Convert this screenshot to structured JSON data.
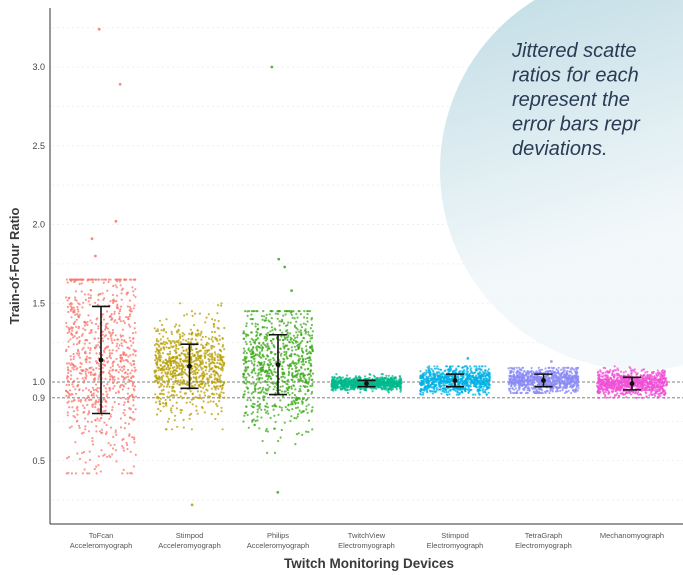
{
  "chart_data": {
    "type": "scatter",
    "subtype": "jittered scatter with mean and standard deviation error bars",
    "title": "",
    "xlabel": "Twitch Monitoring Devices",
    "ylabel": "Train-of-Four Ratio",
    "ylim": [
      0.1,
      3.4
    ],
    "yticks": [
      "0.5",
      "0.9",
      "1.0",
      "1.5",
      "2.0",
      "2.5",
      "3.0"
    ],
    "grid": true,
    "reference_lines": [
      0.9,
      1.0
    ],
    "categories": [
      {
        "line1": "ToFcan",
        "line2": "Acceleromyograph"
      },
      {
        "line1": "Stimpod",
        "line2": "Acceleromyograph"
      },
      {
        "line1": "Philips",
        "line2": "Acceleromyograph"
      },
      {
        "line1": "TwitchView",
        "line2": "Electromyograph"
      },
      {
        "line1": "Stimpod",
        "line2": "Electromyograph"
      },
      {
        "line1": "TetraGraph",
        "line2": "Electromyograph"
      },
      {
        "line1": "Mechanomyograph",
        "line2": ""
      }
    ],
    "series": [
      {
        "color": "#F8766D",
        "mean": 1.14,
        "sd": 0.34,
        "min": 0.42,
        "max": 1.65,
        "outliers": [
          3.24,
          2.89,
          2.02,
          1.91,
          1.8
        ]
      },
      {
        "color": "#B79F00",
        "mean": 1.1,
        "sd": 0.14,
        "min": 0.7,
        "max": 1.5,
        "outliers": [
          0.22
        ]
      },
      {
        "color": "#3BAA18",
        "mean": 1.11,
        "sd": 0.19,
        "min": 0.55,
        "max": 1.45,
        "outliers": [
          3.0,
          1.78,
          1.73,
          1.58,
          0.3
        ]
      },
      {
        "color": "#00BA8C",
        "mean": 0.99,
        "sd": 0.02,
        "min": 0.93,
        "max": 1.05,
        "outliers": []
      },
      {
        "color": "#00B2E6",
        "mean": 1.01,
        "sd": 0.04,
        "min": 0.92,
        "max": 1.1,
        "outliers": [
          1.15
        ]
      },
      {
        "color": "#8B8BF5",
        "mean": 1.01,
        "sd": 0.04,
        "min": 0.93,
        "max": 1.09,
        "outliers": [
          1.13
        ]
      },
      {
        "color": "#F04FD6",
        "mean": 0.99,
        "sd": 0.04,
        "min": 0.9,
        "max": 1.1,
        "outliers": []
      }
    ]
  },
  "caption": {
    "lines": [
      "Jittered scatte",
      "ratios for each",
      "represent the",
      "error bars repr",
      "deviations."
    ]
  },
  "colors": {
    "circle_top": "#b9d8e2",
    "circle_bottom": "#f2f8fa",
    "caption_text": "#2a3b55"
  }
}
